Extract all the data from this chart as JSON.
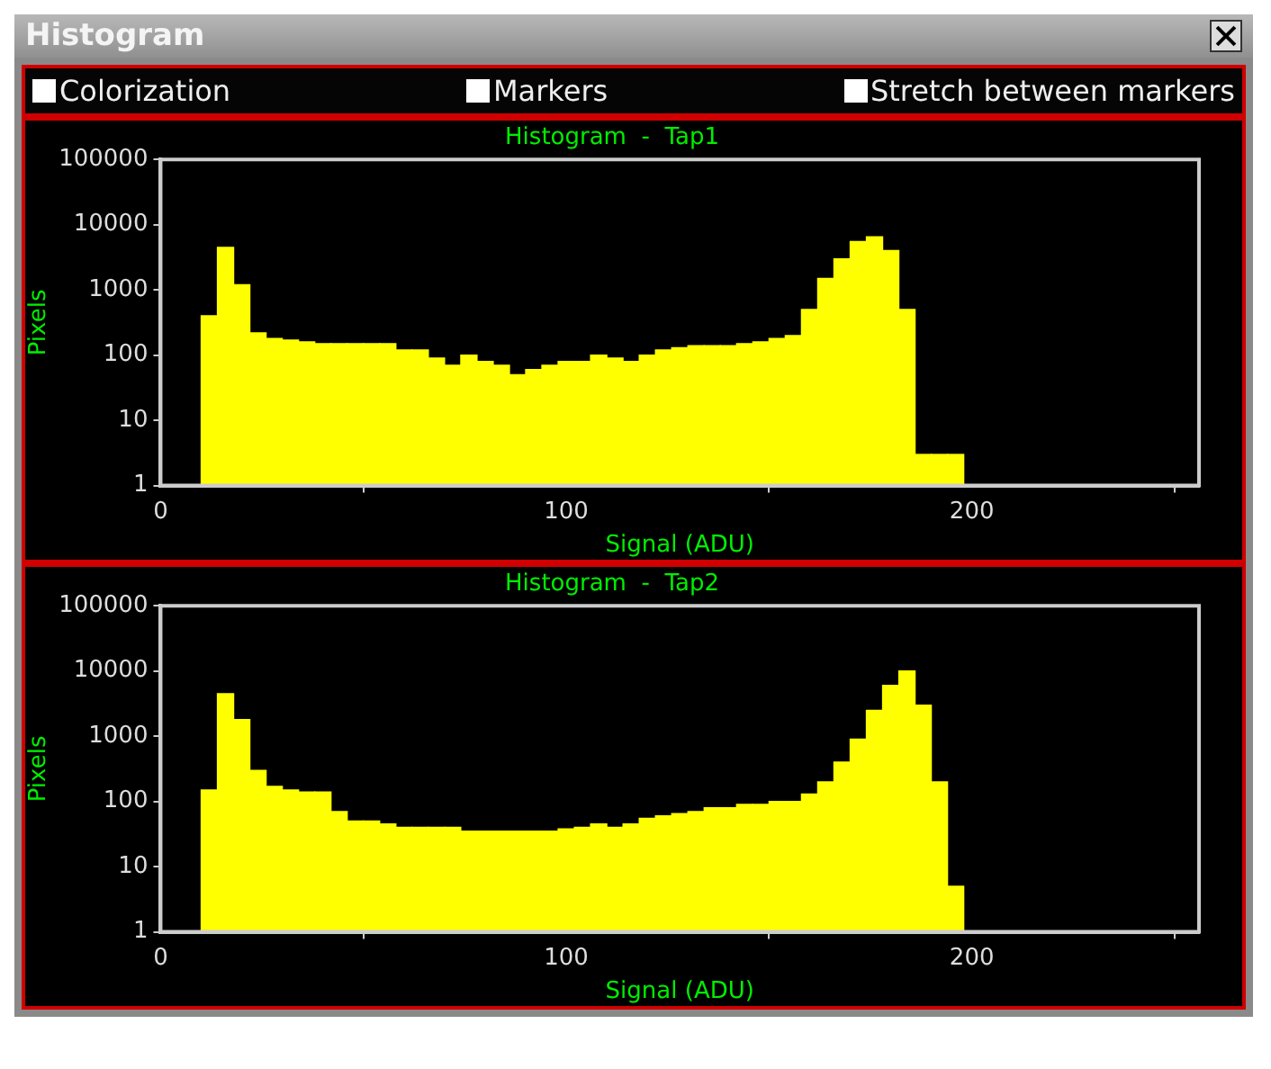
{
  "chart_data": [
    {
      "type": "other",
      "title": "Histogram",
      "annotations": [
        "Colorization",
        "Markers",
        "Stretch between markers"
      ]
    },
    {
      "type": "histogram",
      "title": "Histogram  -  Tap1",
      "xlabel": "Signal (ADU)",
      "ylabel": "Pixels",
      "color": "#ffff00",
      "log": "y",
      "bins": [
        10,
        14,
        18,
        22,
        26,
        30,
        34,
        38,
        42,
        46,
        50,
        54,
        58,
        62,
        66,
        70,
        74,
        78,
        82,
        86,
        90,
        94,
        98,
        102,
        106,
        110,
        114,
        118,
        122,
        126,
        130,
        134,
        138,
        142,
        146,
        150,
        154,
        158,
        162,
        166,
        170,
        174,
        178,
        182,
        186,
        190,
        194,
        198
      ],
      "values": [
        400,
        4500,
        1200,
        220,
        180,
        170,
        160,
        150,
        150,
        150,
        150,
        150,
        120,
        120,
        90,
        70,
        100,
        80,
        70,
        50,
        60,
        70,
        80,
        80,
        100,
        90,
        80,
        100,
        120,
        130,
        140,
        140,
        140,
        150,
        160,
        180,
        200,
        500,
        1500,
        3000,
        5500,
        6500,
        4000,
        500,
        3,
        3,
        3
      ],
      "xlim": [
        0,
        256
      ],
      "xticks": [
        0,
        100,
        200
      ],
      "ylim": [
        1,
        100000
      ],
      "yticks": [
        1,
        10,
        100,
        1000,
        10000,
        100000
      ]
    },
    {
      "type": "histogram",
      "title": "Histogram  -  Tap2",
      "xlabel": "Signal (ADU)",
      "ylabel": "Pixels",
      "color": "#ffff00",
      "log": "y",
      "bins": [
        10,
        14,
        18,
        22,
        26,
        30,
        34,
        38,
        42,
        46,
        50,
        54,
        58,
        62,
        66,
        70,
        74,
        78,
        82,
        86,
        90,
        94,
        98,
        102,
        106,
        110,
        114,
        118,
        122,
        126,
        130,
        134,
        138,
        142,
        146,
        150,
        154,
        158,
        162,
        166,
        170,
        174,
        178,
        182,
        186,
        190,
        194,
        198
      ],
      "values": [
        150,
        4500,
        1800,
        300,
        170,
        150,
        140,
        140,
        70,
        50,
        50,
        45,
        40,
        40,
        40,
        40,
        35,
        35,
        35,
        35,
        35,
        35,
        38,
        40,
        45,
        40,
        45,
        55,
        60,
        65,
        70,
        80,
        80,
        90,
        90,
        100,
        100,
        130,
        200,
        400,
        900,
        2500,
        6000,
        10000,
        3000,
        200,
        5
      ],
      "xlim": [
        0,
        256
      ],
      "xticks": [
        0,
        100,
        200
      ],
      "ylim": [
        1,
        100000
      ],
      "yticks": [
        1,
        10,
        100,
        1000,
        10000,
        100000
      ]
    }
  ]
}
